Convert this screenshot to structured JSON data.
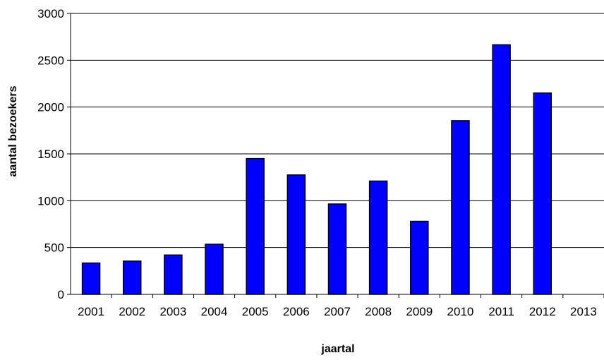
{
  "chart_data": {
    "type": "bar",
    "title": "",
    "xlabel": "jaartal",
    "ylabel": "aantal bezoekers",
    "categories": [
      "2001",
      "2002",
      "2003",
      "2004",
      "2005",
      "2006",
      "2007",
      "2008",
      "2009",
      "2010",
      "2011",
      "2012",
      "2013"
    ],
    "values": [
      335,
      355,
      420,
      535,
      1450,
      1275,
      965,
      1210,
      780,
      1855,
      2665,
      2150,
      null
    ],
    "ylim": [
      0,
      3000
    ],
    "yticks": [
      "0",
      "500",
      "1000",
      "1500",
      "2000",
      "2500",
      "3000"
    ],
    "grid": true,
    "legend": "none",
    "bar_color": "#0000FF",
    "bar_stroke": "#000000"
  }
}
